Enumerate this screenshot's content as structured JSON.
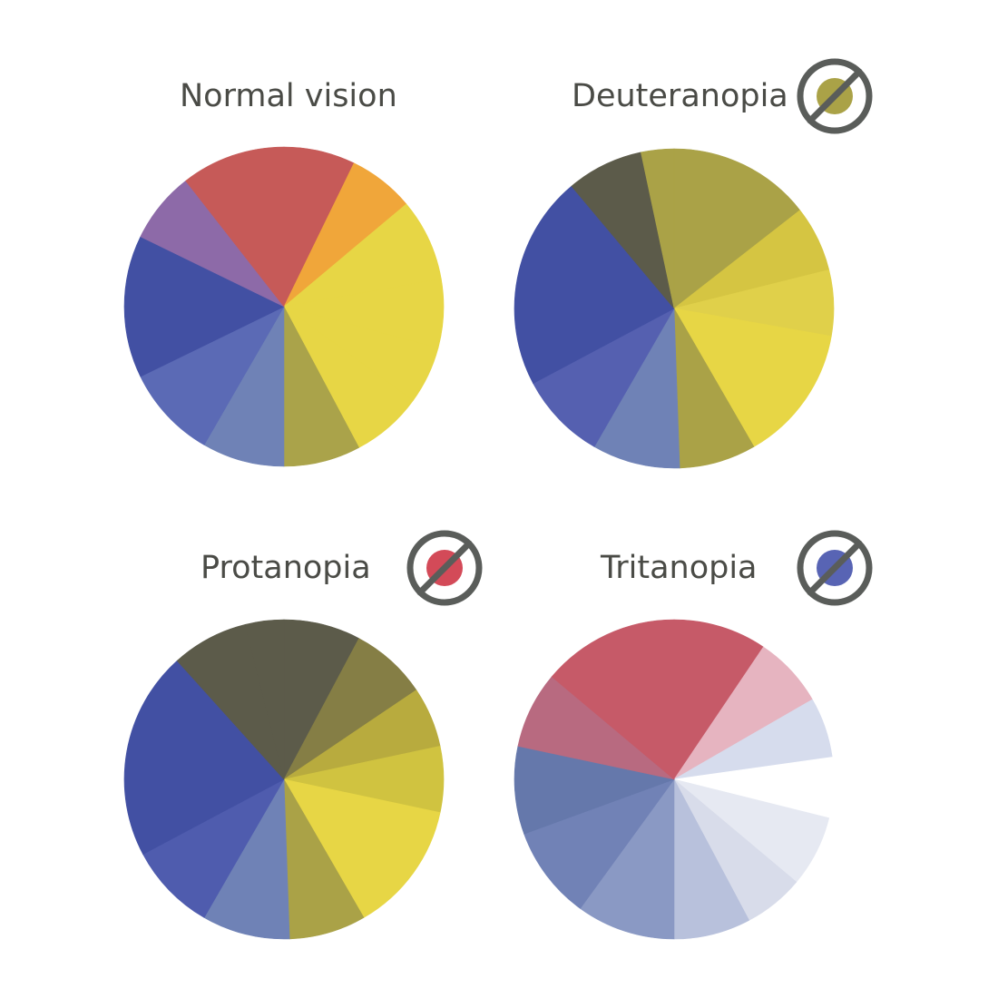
{
  "colors": {
    "text": "#4a4b46",
    "icon_ring": "#5a5d5a",
    "slice_edge": "#ffffff"
  },
  "panels": [
    {
      "title": "Normal vision",
      "icon": null,
      "slices": [
        {
          "start": 0,
          "end": 26,
          "color": "#c65a58"
        },
        {
          "start": 26,
          "end": 50,
          "color": "#f0a63a"
        },
        {
          "start": 50,
          "end": 80,
          "color": "#e7d645"
        },
        {
          "start": 80,
          "end": 105,
          "color": "#e7d645"
        },
        {
          "start": 105,
          "end": 126,
          "color": "#e7d645"
        },
        {
          "start": 126,
          "end": 152,
          "color": "#e7d645"
        },
        {
          "start": 152,
          "end": 180,
          "color": "#aaa34a"
        },
        {
          "start": 180,
          "end": 210,
          "color": "#6f82b6"
        },
        {
          "start": 210,
          "end": 244,
          "color": "#5b6ab5"
        },
        {
          "start": 244,
          "end": 296,
          "color": "#4250a3"
        },
        {
          "start": 296,
          "end": 322,
          "color": "#8d6aa8"
        },
        {
          "start": 322,
          "end": 360,
          "color": "#c65a58"
        }
      ]
    },
    {
      "title": "Deuteranopia",
      "icon": {
        "name": "no-green-icon",
        "dot_color": "#aaa247"
      },
      "slices": [
        {
          "start": 0,
          "end": 52,
          "color": "#aaa247"
        },
        {
          "start": 52,
          "end": 76,
          "color": "#d5c542"
        },
        {
          "start": 76,
          "end": 100,
          "color": "#e0d04a"
        },
        {
          "start": 100,
          "end": 150,
          "color": "#e7d645"
        },
        {
          "start": 150,
          "end": 178,
          "color": "#aaa247"
        },
        {
          "start": 178,
          "end": 210,
          "color": "#6f82b6"
        },
        {
          "start": 210,
          "end": 242,
          "color": "#5560b0"
        },
        {
          "start": 242,
          "end": 320,
          "color": "#4250a3"
        },
        {
          "start": 320,
          "end": 348,
          "color": "#5c5b4a"
        },
        {
          "start": 348,
          "end": 360,
          "color": "#aaa247"
        }
      ]
    },
    {
      "title": "Protanopia",
      "icon": {
        "name": "no-red-icon",
        "dot_color": "#d34a58"
      },
      "slices": [
        {
          "start": 0,
          "end": 28,
          "color": "#5c5b4a"
        },
        {
          "start": 28,
          "end": 56,
          "color": "#857e45"
        },
        {
          "start": 56,
          "end": 78,
          "color": "#b8ab3e"
        },
        {
          "start": 78,
          "end": 102,
          "color": "#d0c340"
        },
        {
          "start": 102,
          "end": 150,
          "color": "#e7d645"
        },
        {
          "start": 150,
          "end": 178,
          "color": "#aaa247"
        },
        {
          "start": 178,
          "end": 210,
          "color": "#6f82b6"
        },
        {
          "start": 210,
          "end": 242,
          "color": "#4f5cae"
        },
        {
          "start": 242,
          "end": 318,
          "color": "#4250a3"
        },
        {
          "start": 318,
          "end": 346,
          "color": "#5c5b4a"
        },
        {
          "start": 346,
          "end": 360,
          "color": "#5c5b4a"
        }
      ]
    },
    {
      "title": "Tritanopia",
      "icon": {
        "name": "no-blue-icon",
        "dot_color": "#5864b4"
      },
      "slices": [
        {
          "start": 0,
          "end": 34,
          "color": "#c65a68"
        },
        {
          "start": 34,
          "end": 60,
          "color": "#e6b4c0"
        },
        {
          "start": 60,
          "end": 82,
          "color": "#d6dced"
        },
        {
          "start": 82,
          "end": 104,
          "color": "#ffffff"
        },
        {
          "start": 104,
          "end": 130,
          "color": "#e6e9f2"
        },
        {
          "start": 130,
          "end": 152,
          "color": "#d8dcea"
        },
        {
          "start": 152,
          "end": 180,
          "color": "#b8c1dc"
        },
        {
          "start": 180,
          "end": 216,
          "color": "#8a99c4"
        },
        {
          "start": 216,
          "end": 250,
          "color": "#7182b6"
        },
        {
          "start": 250,
          "end": 282,
          "color": "#6578ab"
        },
        {
          "start": 282,
          "end": 310,
          "color": "#b86a80"
        },
        {
          "start": 310,
          "end": 360,
          "color": "#c65a68"
        }
      ]
    }
  ]
}
